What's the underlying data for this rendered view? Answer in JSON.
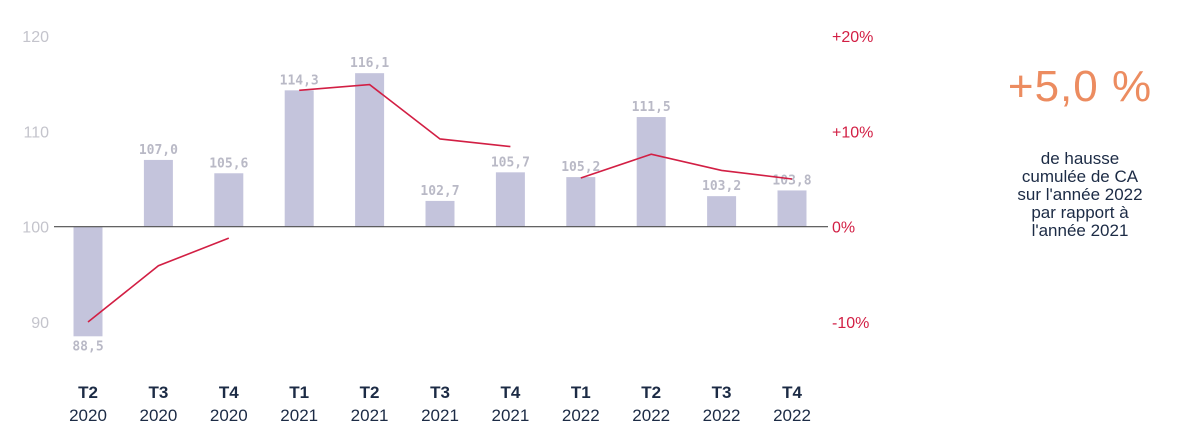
{
  "chart_data": {
    "type": "bar",
    "categories": [
      {
        "quarter": "T2",
        "year": "2020"
      },
      {
        "quarter": "T3",
        "year": "2020"
      },
      {
        "quarter": "T4",
        "year": "2020"
      },
      {
        "quarter": "T1",
        "year": "2021"
      },
      {
        "quarter": "T2",
        "year": "2021"
      },
      {
        "quarter": "T3",
        "year": "2021"
      },
      {
        "quarter": "T4",
        "year": "2021"
      },
      {
        "quarter": "T1",
        "year": "2022"
      },
      {
        "quarter": "T2",
        "year": "2022"
      },
      {
        "quarter": "T3",
        "year": "2022"
      },
      {
        "quarter": "T4",
        "year": "2022"
      }
    ],
    "bar_values": [
      88.5,
      107.0,
      105.6,
      114.3,
      116.1,
      102.7,
      105.7,
      105.2,
      111.5,
      103.2,
      103.8
    ],
    "bar_labels": [
      "88,5",
      "107,0",
      "105,6",
      "114,3",
      "116,1",
      "102,7",
      "105,7",
      "105,2",
      "111,5",
      "103,2",
      "103,8"
    ],
    "line_segments": [
      [
        {
          "i": 0,
          "v": -10.0
        },
        {
          "i": 1,
          "v": -4.1
        },
        {
          "i": 2,
          "v": -1.2
        }
      ],
      [
        {
          "i": 3,
          "v": 14.3
        },
        {
          "i": 4,
          "v": 14.9
        },
        {
          "i": 5,
          "v": 9.2
        },
        {
          "i": 6,
          "v": 8.4
        }
      ],
      [
        {
          "i": 7,
          "v": 5.1
        },
        {
          "i": 8,
          "v": 7.6
        },
        {
          "i": 9,
          "v": 5.9
        },
        {
          "i": 10,
          "v": 5.0
        }
      ]
    ],
    "left_axis": {
      "ticks": [
        "90",
        "100",
        "110",
        "120"
      ],
      "tick_values": [
        90,
        100,
        110,
        120
      ],
      "range": [
        90,
        120
      ],
      "baseline": 100
    },
    "right_axis": {
      "ticks": [
        "-10%",
        "0%",
        "+10%",
        "+20%"
      ],
      "tick_values": [
        -10,
        0,
        10,
        20
      ],
      "range": [
        -10,
        20
      ]
    },
    "grid": false
  },
  "colors": {
    "bar": "#c4c4dc",
    "line": "#d21f44",
    "baseline": "#4d4d4d",
    "kpi": "#ec8c60",
    "text": "#1c2b45"
  },
  "kpi": {
    "value": "+5,0 %",
    "caption_lines": [
      "de hausse",
      "cumulée de CA",
      "sur l'année 2022",
      "par rapport à",
      "l'année 2021"
    ]
  }
}
